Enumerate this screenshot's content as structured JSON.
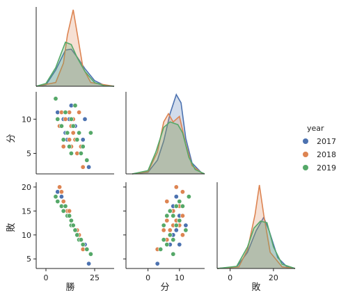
{
  "chart_data": {
    "type": "scatter",
    "variables": [
      "勝",
      "分",
      "敗"
    ],
    "legend": {
      "title": "year",
      "placement": "right",
      "entries": [
        {
          "label": "2017",
          "color": "#4c72b0"
        },
        {
          "label": "2018",
          "color": "#dd8452"
        },
        {
          "label": "2019",
          "color": "#55a868"
        }
      ]
    },
    "series": [
      {
        "name": "2017",
        "color": "#4c72b0",
        "勝": [
          6,
          8,
          9,
          10,
          11,
          12,
          13,
          13,
          14,
          15,
          16,
          17,
          18,
          19,
          20,
          22
        ],
        "分": [
          11,
          9,
          10,
          8,
          7,
          10,
          6,
          12,
          8,
          9,
          5,
          8,
          6,
          7,
          10,
          3
        ],
        "敗": [
          19,
          18,
          17,
          16,
          15,
          14,
          13,
          12,
          12,
          11,
          11,
          10,
          9,
          8,
          8,
          4
        ]
      },
      {
        "name": "2018",
        "color": "#dd8452",
        "勝": [
          7,
          8,
          9,
          10,
          11,
          12,
          12,
          13,
          13,
          14,
          14,
          15,
          16,
          17,
          18,
          19
        ],
        "分": [
          9,
          11,
          6,
          10,
          8,
          7,
          11,
          9,
          6,
          8,
          10,
          7,
          5,
          11,
          6,
          3
        ],
        "敗": [
          20,
          19,
          17,
          16,
          15,
          15,
          14,
          13,
          13,
          12,
          12,
          11,
          11,
          10,
          9,
          7
        ]
      },
      {
        "name": "2019",
        "color": "#55a868",
        "勝": [
          5,
          6,
          8,
          9,
          10,
          11,
          12,
          13,
          13,
          14,
          15,
          16,
          17,
          18,
          19,
          21,
          23
        ],
        "分": [
          13,
          10,
          9,
          7,
          11,
          8,
          6,
          10,
          5,
          9,
          12,
          7,
          8,
          5,
          6,
          4,
          8
        ],
        "敗": [
          18,
          17,
          16,
          15,
          16,
          14,
          14,
          13,
          12,
          12,
          11,
          10,
          9,
          9,
          8,
          7,
          6
        ]
      }
    ],
    "axes": {
      "勝": {
        "ticks": [
          0,
          25
        ],
        "range": [
          -5,
          35
        ]
      },
      "分": {
        "ticks": [
          5,
          10
        ],
        "range": [
          2,
          14
        ],
        "ticks_x": [
          0,
          10
        ],
        "range_x": [
          -7,
          18
        ]
      },
      "敗": {
        "ticks": [
          5,
          10,
          15,
          20
        ],
        "range": [
          3,
          21
        ],
        "ticks_x": [
          0,
          20
        ],
        "range_x": [
          -6,
          30
        ]
      }
    },
    "kde": {
      "勝": {
        "2017": [
          [
            -5,
            0
          ],
          [
            0,
            0.3
          ],
          [
            5,
            3.5
          ],
          [
            10,
            7.8
          ],
          [
            13,
            8.0
          ],
          [
            16,
            6.3
          ],
          [
            20,
            3.8
          ],
          [
            25,
            1.2
          ],
          [
            30,
            0.2
          ],
          [
            35,
            0
          ]
        ],
        "2018": [
          [
            -5,
            0
          ],
          [
            5,
            0.8
          ],
          [
            9,
            5
          ],
          [
            11,
            11
          ],
          [
            14,
            16.5
          ],
          [
            16,
            11.5
          ],
          [
            19,
            4
          ],
          [
            23,
            0.8
          ],
          [
            35,
            0
          ]
        ],
        "2019": [
          [
            -5,
            0
          ],
          [
            0,
            0.6
          ],
          [
            5,
            4
          ],
          [
            10,
            9.5
          ],
          [
            13,
            9
          ],
          [
            16,
            6.2
          ],
          [
            20,
            3.2
          ],
          [
            25,
            0.8
          ],
          [
            30,
            0.1
          ],
          [
            35,
            0
          ]
        ]
      },
      "分": {
        "2017": [
          [
            -5,
            0
          ],
          [
            0,
            0.3
          ],
          [
            3,
            2.5
          ],
          [
            5,
            6
          ],
          [
            7,
            11
          ],
          [
            9,
            14.5
          ],
          [
            10.5,
            13
          ],
          [
            12,
            6.5
          ],
          [
            14,
            2
          ],
          [
            17,
            0.2
          ],
          [
            18,
            0
          ]
        ],
        "2018": [
          [
            -5,
            0
          ],
          [
            0,
            0.4
          ],
          [
            3,
            4
          ],
          [
            5,
            9.5
          ],
          [
            6.5,
            11
          ],
          [
            8,
            9.5
          ],
          [
            10,
            10.5
          ],
          [
            12,
            5.5
          ],
          [
            14,
            1.5
          ],
          [
            17,
            0.2
          ],
          [
            18,
            0
          ]
        ],
        "2019": [
          [
            -5,
            0
          ],
          [
            0,
            0.6
          ],
          [
            2.5,
            4
          ],
          [
            5,
            8.5
          ],
          [
            7,
            9.5
          ],
          [
            9.5,
            9
          ],
          [
            11,
            7.5
          ],
          [
            13,
            3
          ],
          [
            15,
            0.8
          ],
          [
            18,
            0
          ]
        ]
      },
      "敗": {
        "2017": [
          [
            -6,
            0
          ],
          [
            3,
            0.3
          ],
          [
            8,
            3
          ],
          [
            12,
            7
          ],
          [
            15.5,
            9.5
          ],
          [
            18,
            7
          ],
          [
            22,
            2
          ],
          [
            26,
            0.4
          ],
          [
            30,
            0
          ]
        ],
        "2018": [
          [
            -6,
            0
          ],
          [
            4,
            0.3
          ],
          [
            8,
            3.5
          ],
          [
            11.5,
            10
          ],
          [
            13.5,
            15.5
          ],
          [
            15.5,
            10
          ],
          [
            18.5,
            3
          ],
          [
            24,
            0.3
          ],
          [
            30,
            0
          ]
        ],
        "2019": [
          [
            -6,
            0
          ],
          [
            3,
            0.4
          ],
          [
            8,
            4
          ],
          [
            11,
            7.5
          ],
          [
            14,
            8.8
          ],
          [
            17,
            8.5
          ],
          [
            20,
            4
          ],
          [
            24,
            0.8
          ],
          [
            30,
            0
          ]
        ]
      }
    }
  }
}
